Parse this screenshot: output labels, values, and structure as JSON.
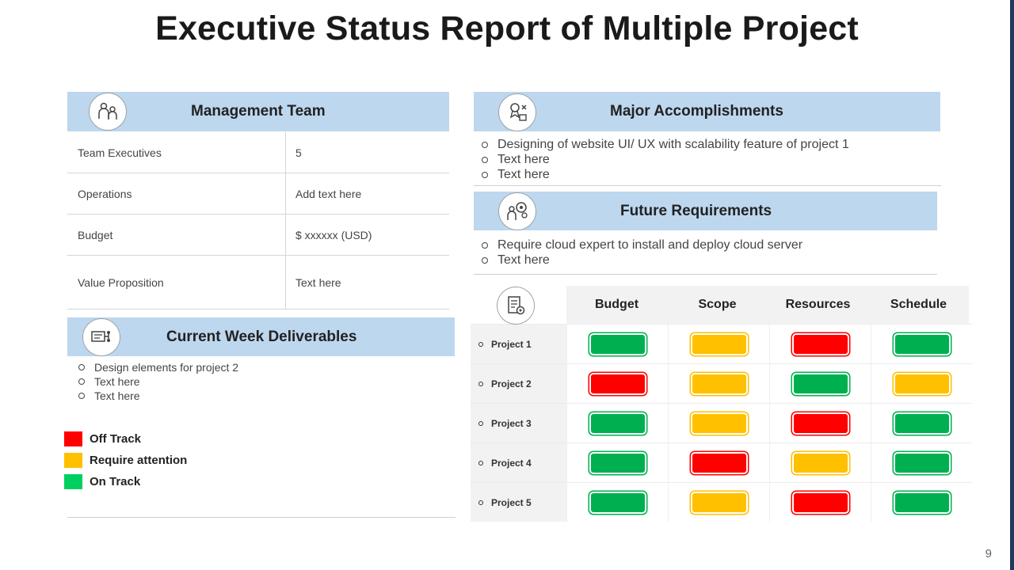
{
  "title": "Executive Status Report of Multiple Project",
  "page_number": "9",
  "colors": {
    "off_track": "#ff0000",
    "require_attention": "#ffc000",
    "on_track": "#00b050",
    "header_bg": "#bdd7ee"
  },
  "management_team": {
    "heading": "Management Team",
    "icon": "team-people-icon",
    "rows": [
      {
        "label": "Team Executives",
        "value": "5"
      },
      {
        "label": "Operations",
        "value": "Add text here"
      },
      {
        "label": "Budget",
        "value": "$ xxxxxx (USD)"
      },
      {
        "label": "Value  Proposition",
        "value": "Text here"
      }
    ]
  },
  "current_week": {
    "heading": "Current Week Deliverables",
    "icon": "workflow-icon",
    "items": [
      "Design elements for project 2",
      "Text here",
      "Text here"
    ]
  },
  "legend": [
    {
      "label": "Off Track",
      "color": "#ff0000"
    },
    {
      "label": "Require attention",
      "color": "#ffc000"
    },
    {
      "label": "On Track",
      "color": "#00d060"
    }
  ],
  "major_accomplishments": {
    "heading": "Major Accomplishments",
    "icon": "award-tools-icon",
    "items": [
      "Designing of website UI/  UX with scalability feature  of project 1",
      "Text  here",
      "Text  here"
    ]
  },
  "future_requirements": {
    "heading": "Future Requirements",
    "icon": "person-gears-icon",
    "items": [
      "Require cloud expert to install and deploy cloud server",
      "Text here"
    ]
  },
  "status_grid": {
    "icon": "report-settings-icon",
    "columns": [
      "Budget",
      "Scope",
      "Resources",
      "Schedule"
    ],
    "projects": [
      {
        "name": "Project 1",
        "status": [
          "on_track",
          "require_attention",
          "off_track",
          "on_track"
        ]
      },
      {
        "name": "Project 2",
        "status": [
          "off_track",
          "require_attention",
          "on_track",
          "require_attention"
        ]
      },
      {
        "name": "Project 3",
        "status": [
          "on_track",
          "require_attention",
          "off_track",
          "on_track"
        ]
      },
      {
        "name": "Project 4",
        "status": [
          "on_track",
          "off_track",
          "require_attention",
          "on_track"
        ]
      },
      {
        "name": "Project 5",
        "status": [
          "on_track",
          "require_attention",
          "off_track",
          "on_track"
        ]
      }
    ]
  }
}
